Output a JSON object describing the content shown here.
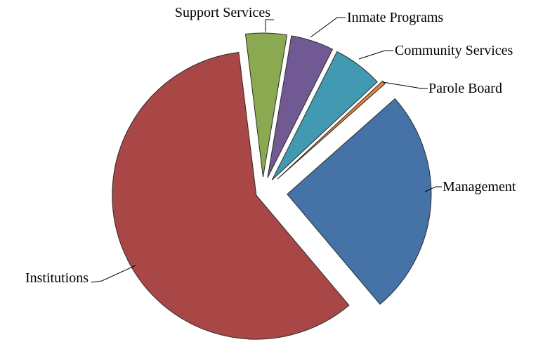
{
  "chart_data": {
    "type": "pie",
    "title": "",
    "exploded": true,
    "start_angle_deg": 0,
    "slices": [
      {
        "label": "Support Services",
        "value": 4.6,
        "color": "#8BA951"
      },
      {
        "label": "Inmate Programs",
        "value": 4.8,
        "color": "#715A93"
      },
      {
        "label": "Community Services",
        "value": 5.6,
        "color": "#4299B2"
      },
      {
        "label": "Parole Board",
        "value": 0.4,
        "color": "#E0843A"
      },
      {
        "label": "Management",
        "value": 25.4,
        "color": "#4572A7"
      },
      {
        "label": "Institutions",
        "value": 59.2,
        "color": "#A84745"
      }
    ]
  }
}
